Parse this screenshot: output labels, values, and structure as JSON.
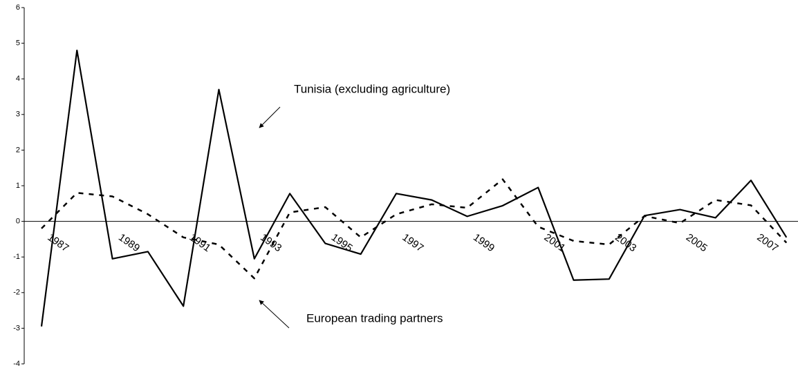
{
  "chart_data": {
    "type": "line",
    "categories": [
      "1987",
      null,
      "1989",
      null,
      "1991",
      null,
      "1993",
      null,
      "1995",
      null,
      "1997",
      null,
      "1999",
      null,
      "2001",
      null,
      "2003",
      null,
      "2005",
      null,
      "2007",
      null
    ],
    "series": [
      {
        "name": "Tunisia (excluding agriculture)",
        "color": "#000000",
        "dash": "solid",
        "values": [
          -2.95,
          4.8,
          -1.05,
          -0.85,
          -2.38,
          3.7,
          -1.05,
          0.78,
          -0.62,
          -0.92,
          0.78,
          0.6,
          0.14,
          0.44,
          0.95,
          -1.65,
          -1.62,
          0.16,
          0.33,
          0.1,
          1.15,
          -0.45
        ]
      },
      {
        "name": "European trading partners",
        "color": "#000000",
        "dash": "dashed",
        "values": [
          -0.2,
          0.8,
          0.7,
          0.2,
          -0.45,
          -0.65,
          -1.6,
          0.25,
          0.4,
          -0.45,
          0.2,
          0.48,
          0.38,
          1.18,
          -0.15,
          -0.55,
          -0.65,
          0.15,
          -0.05,
          0.6,
          0.45,
          -0.6
        ]
      }
    ],
    "ylim": [
      -4,
      6
    ],
    "yticks": [
      -4,
      -3,
      -2,
      -1,
      0,
      1,
      2,
      3,
      4,
      5,
      6
    ],
    "grid": false
  }
}
